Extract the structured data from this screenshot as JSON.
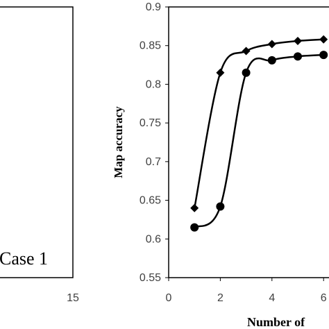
{
  "chart_data": [
    {
      "type": "line",
      "title": "",
      "annotation": "Case 1",
      "xlabel": "",
      "ylabel": "",
      "x_ticks": [
        "15"
      ],
      "series": []
    },
    {
      "type": "line",
      "title": "",
      "xlabel": "Number of",
      "ylabel": "Map accuracy",
      "xlim": [
        0,
        6.5
      ],
      "ylim": [
        0.55,
        0.9
      ],
      "x_ticks": [
        "0",
        "2",
        "4",
        "6"
      ],
      "y_ticks": [
        "0.55",
        "0.6",
        "0.65",
        "0.7",
        "0.75",
        "0.8",
        "0.85",
        "0.9"
      ],
      "grid": false,
      "series": [
        {
          "marker": "diamond",
          "color": "#000000",
          "x": [
            1,
            2,
            3,
            4,
            5,
            6
          ],
          "y": [
            0.64,
            0.815,
            0.843,
            0.852,
            0.856,
            0.858
          ]
        },
        {
          "marker": "circle",
          "color": "#000000",
          "x": [
            1,
            2,
            3,
            4,
            5,
            6
          ],
          "y": [
            0.615,
            0.642,
            0.815,
            0.831,
            0.836,
            0.838
          ]
        }
      ]
    }
  ]
}
